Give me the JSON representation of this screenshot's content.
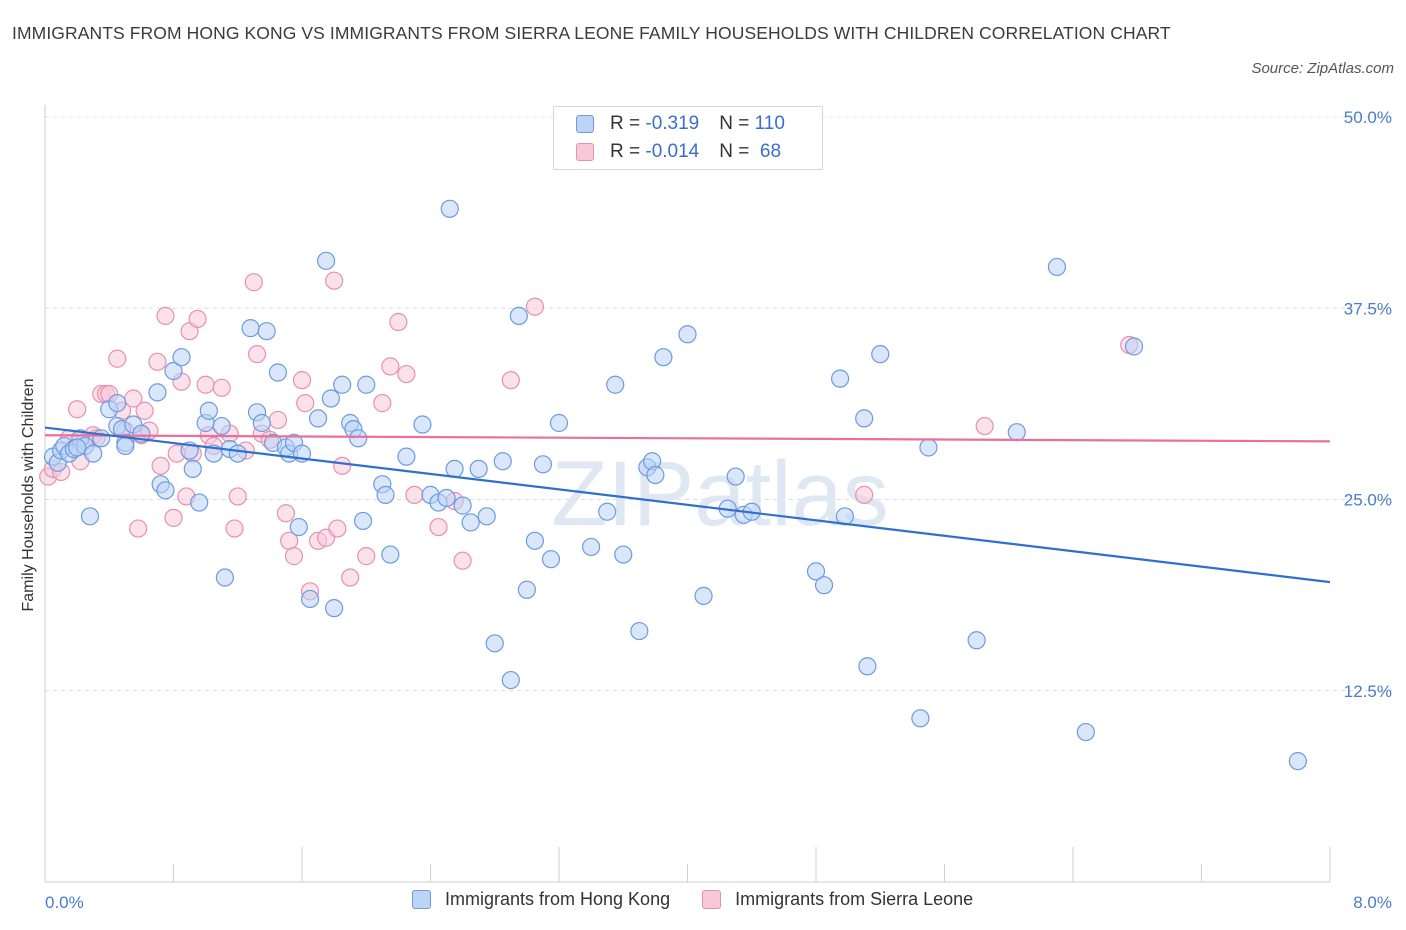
{
  "title": "IMMIGRANTS FROM HONG KONG VS IMMIGRANTS FROM SIERRA LEONE FAMILY HOUSEHOLDS WITH CHILDREN CORRELATION CHART",
  "source": "Source: ZipAtlas.com",
  "watermark": "ZIPatlas",
  "colors": {
    "hong_kong_fill": "#bcd4f5",
    "hong_kong_stroke": "#6b9be0",
    "hong_kong_line": "#2f6fd0",
    "sierra_leone_fill": "#f8c8d8",
    "sierra_leone_stroke": "#e890b0",
    "sierra_leone_line": "#e8709a",
    "axis_text": "#4a7cc9"
  },
  "legend": {
    "rows": [
      {
        "r_label": "R = ",
        "r_value": "-0.319",
        "n_label": "N = ",
        "n_value": "110"
      },
      {
        "r_label": "R = ",
        "r_value": "-0.014",
        "n_label": "N = ",
        "n_value": " 68"
      }
    ]
  },
  "chart_data": {
    "type": "scatter",
    "title": "IMMIGRANTS FROM HONG KONG VS IMMIGRANTS FROM SIERRA LEONE FAMILY HOUSEHOLDS WITH CHILDREN CORRELATION CHART",
    "xlabel": "",
    "ylabel": "Family Households with Children",
    "xlim": [
      0,
      8
    ],
    "ylim": [
      0,
      50
    ],
    "x_tick_labels": [
      "0.0%",
      "8.0%"
    ],
    "y_ticks": [
      12.5,
      25.0,
      37.5,
      50.0
    ],
    "y_tick_labels": [
      "12.5%",
      "25.0%",
      "37.5%",
      "50.0%"
    ],
    "grid": true,
    "legend_position": "bottom",
    "series": [
      {
        "name": "Immigrants from Hong Kong",
        "trend": {
          "x": [
            0,
            8
          ],
          "y": [
            29.7,
            19.6
          ]
        },
        "points": [
          [
            0.05,
            27.8
          ],
          [
            0.08,
            27.4
          ],
          [
            0.1,
            28.2
          ],
          [
            0.12,
            28.5
          ],
          [
            0.15,
            28.0
          ],
          [
            0.18,
            28.3
          ],
          [
            0.22,
            29.0
          ],
          [
            0.25,
            28.5
          ],
          [
            0.3,
            28.0
          ],
          [
            0.28,
            23.9
          ],
          [
            0.35,
            29.0
          ],
          [
            0.4,
            30.9
          ],
          [
            0.45,
            29.8
          ],
          [
            0.48,
            29.6
          ],
          [
            0.5,
            28.7
          ],
          [
            0.45,
            31.3
          ],
          [
            0.5,
            28.5
          ],
          [
            0.55,
            29.9
          ],
          [
            0.6,
            29.3
          ],
          [
            0.7,
            32.0
          ],
          [
            0.72,
            26.0
          ],
          [
            0.75,
            25.6
          ],
          [
            0.8,
            33.4
          ],
          [
            0.85,
            34.3
          ],
          [
            0.9,
            28.2
          ],
          [
            0.92,
            27.0
          ],
          [
            0.96,
            24.8
          ],
          [
            1.0,
            30.0
          ],
          [
            1.02,
            30.8
          ],
          [
            1.05,
            28.0
          ],
          [
            1.1,
            29.8
          ],
          [
            1.12,
            19.9
          ],
          [
            1.15,
            28.3
          ],
          [
            1.2,
            28.0
          ],
          [
            1.28,
            36.2
          ],
          [
            1.32,
            30.7
          ],
          [
            1.35,
            30.0
          ],
          [
            1.38,
            36.0
          ],
          [
            1.42,
            28.7
          ],
          [
            1.45,
            33.3
          ],
          [
            1.5,
            28.4
          ],
          [
            1.52,
            28.0
          ],
          [
            1.55,
            28.7
          ],
          [
            1.6,
            28.0
          ],
          [
            1.58,
            23.2
          ],
          [
            1.65,
            18.5
          ],
          [
            1.7,
            30.3
          ],
          [
            1.75,
            40.6
          ],
          [
            1.78,
            31.6
          ],
          [
            1.85,
            32.5
          ],
          [
            1.8,
            17.9
          ],
          [
            1.9,
            30.0
          ],
          [
            1.92,
            29.6
          ],
          [
            1.95,
            29.0
          ],
          [
            1.98,
            23.6
          ],
          [
            2.0,
            32.5
          ],
          [
            2.1,
            26.0
          ],
          [
            2.12,
            25.3
          ],
          [
            2.15,
            21.4
          ],
          [
            2.25,
            27.8
          ],
          [
            2.35,
            29.9
          ],
          [
            2.4,
            25.3
          ],
          [
            2.45,
            24.8
          ],
          [
            2.5,
            25.1
          ],
          [
            2.52,
            44.0
          ],
          [
            2.55,
            27.0
          ],
          [
            2.6,
            24.6
          ],
          [
            2.65,
            23.5
          ],
          [
            2.7,
            27.0
          ],
          [
            2.75,
            23.9
          ],
          [
            2.8,
            15.6
          ],
          [
            2.85,
            27.5
          ],
          [
            2.9,
            13.2
          ],
          [
            2.95,
            37.0
          ],
          [
            3.0,
            19.1
          ],
          [
            3.05,
            22.3
          ],
          [
            3.1,
            27.3
          ],
          [
            3.15,
            21.1
          ],
          [
            3.2,
            30.0
          ],
          [
            3.4,
            21.9
          ],
          [
            3.5,
            24.2
          ],
          [
            3.55,
            32.5
          ],
          [
            3.6,
            21.4
          ],
          [
            3.7,
            16.4
          ],
          [
            3.75,
            27.1
          ],
          [
            3.78,
            27.5
          ],
          [
            3.8,
            26.6
          ],
          [
            3.85,
            34.3
          ],
          [
            4.0,
            35.8
          ],
          [
            4.1,
            18.7
          ],
          [
            4.25,
            24.4
          ],
          [
            4.35,
            24.0
          ],
          [
            4.3,
            26.5
          ],
          [
            4.4,
            24.2
          ],
          [
            4.8,
            20.3
          ],
          [
            4.85,
            19.4
          ],
          [
            4.95,
            32.9
          ],
          [
            4.98,
            23.9
          ],
          [
            5.1,
            30.3
          ],
          [
            5.12,
            14.1
          ],
          [
            5.2,
            34.5
          ],
          [
            5.45,
            10.7
          ],
          [
            5.5,
            28.4
          ],
          [
            5.8,
            15.8
          ],
          [
            6.05,
            29.4
          ],
          [
            6.3,
            40.2
          ],
          [
            6.48,
            9.8
          ],
          [
            6.78,
            35.0
          ],
          [
            7.8,
            7.9
          ],
          [
            0.2,
            28.4
          ]
        ]
      },
      {
        "name": "Immigrants from Sierra Leone",
        "trend": {
          "x": [
            0,
            8
          ],
          "y": [
            29.2,
            28.8
          ]
        },
        "points": [
          [
            0.02,
            26.5
          ],
          [
            0.05,
            27.0
          ],
          [
            0.1,
            26.8
          ],
          [
            0.15,
            29.0
          ],
          [
            0.2,
            30.9
          ],
          [
            0.22,
            27.5
          ],
          [
            0.25,
            28.8
          ],
          [
            0.3,
            29.2
          ],
          [
            0.32,
            29.0
          ],
          [
            0.35,
            31.9
          ],
          [
            0.38,
            31.9
          ],
          [
            0.4,
            31.9
          ],
          [
            0.45,
            34.2
          ],
          [
            0.48,
            30.8
          ],
          [
            0.5,
            29.5
          ],
          [
            0.55,
            31.6
          ],
          [
            0.58,
            23.1
          ],
          [
            0.6,
            29.2
          ],
          [
            0.62,
            30.8
          ],
          [
            0.65,
            29.5
          ],
          [
            0.7,
            34.0
          ],
          [
            0.72,
            27.2
          ],
          [
            0.75,
            37.0
          ],
          [
            0.8,
            23.8
          ],
          [
            0.82,
            28.0
          ],
          [
            0.85,
            32.7
          ],
          [
            0.88,
            25.2
          ],
          [
            0.9,
            36.0
          ],
          [
            0.92,
            28.0
          ],
          [
            0.95,
            36.8
          ],
          [
            1.0,
            32.5
          ],
          [
            1.02,
            29.2
          ],
          [
            1.05,
            28.5
          ],
          [
            1.1,
            32.3
          ],
          [
            1.15,
            29.3
          ],
          [
            1.18,
            23.1
          ],
          [
            1.2,
            25.2
          ],
          [
            1.25,
            28.2
          ],
          [
            1.3,
            39.2
          ],
          [
            1.32,
            34.5
          ],
          [
            1.35,
            29.3
          ],
          [
            1.4,
            28.9
          ],
          [
            1.45,
            30.2
          ],
          [
            1.5,
            24.1
          ],
          [
            1.52,
            22.3
          ],
          [
            1.55,
            21.3
          ],
          [
            1.6,
            32.8
          ],
          [
            1.62,
            31.3
          ],
          [
            1.65,
            19.0
          ],
          [
            1.7,
            22.3
          ],
          [
            1.75,
            22.5
          ],
          [
            1.8,
            39.3
          ],
          [
            1.82,
            23.1
          ],
          [
            1.85,
            27.2
          ],
          [
            1.9,
            19.9
          ],
          [
            2.0,
            21.3
          ],
          [
            2.1,
            31.3
          ],
          [
            2.15,
            33.7
          ],
          [
            2.2,
            36.6
          ],
          [
            2.25,
            33.2
          ],
          [
            2.3,
            25.3
          ],
          [
            2.45,
            23.2
          ],
          [
            2.55,
            24.9
          ],
          [
            2.6,
            21.0
          ],
          [
            2.9,
            32.8
          ],
          [
            3.05,
            37.6
          ],
          [
            5.1,
            25.3
          ],
          [
            5.85,
            29.8
          ],
          [
            6.75,
            35.1
          ]
        ]
      }
    ]
  }
}
